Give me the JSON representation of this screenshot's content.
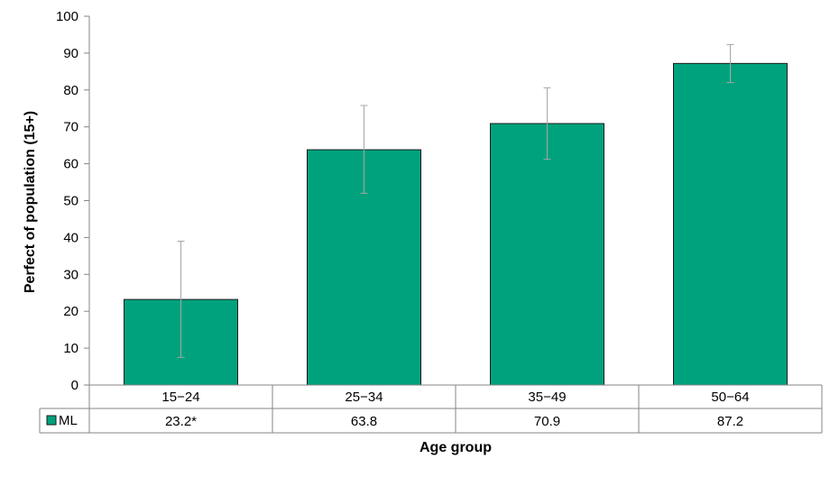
{
  "chart_data": {
    "type": "bar",
    "categories": [
      "15−24",
      "25−34",
      "35−49",
      "50−64"
    ],
    "series": [
      {
        "name": "ML",
        "values": [
          23.2,
          63.8,
          70.9,
          87.2
        ],
        "value_labels": [
          "23.2*",
          "63.8",
          "70.9",
          "87.2"
        ],
        "error_low": [
          7.5,
          52,
          61.2,
          82
        ],
        "error_high": [
          39,
          75.8,
          80.6,
          92.3
        ],
        "color": "#00a27d"
      }
    ],
    "ylabel": "Perfect of population (15+)",
    "xlabel": "Age group",
    "ylim": [
      0,
      100
    ],
    "yticks": [
      0,
      10,
      20,
      30,
      40,
      50,
      60,
      70,
      80,
      90,
      100
    ],
    "grid": false,
    "legend": "data-table"
  }
}
